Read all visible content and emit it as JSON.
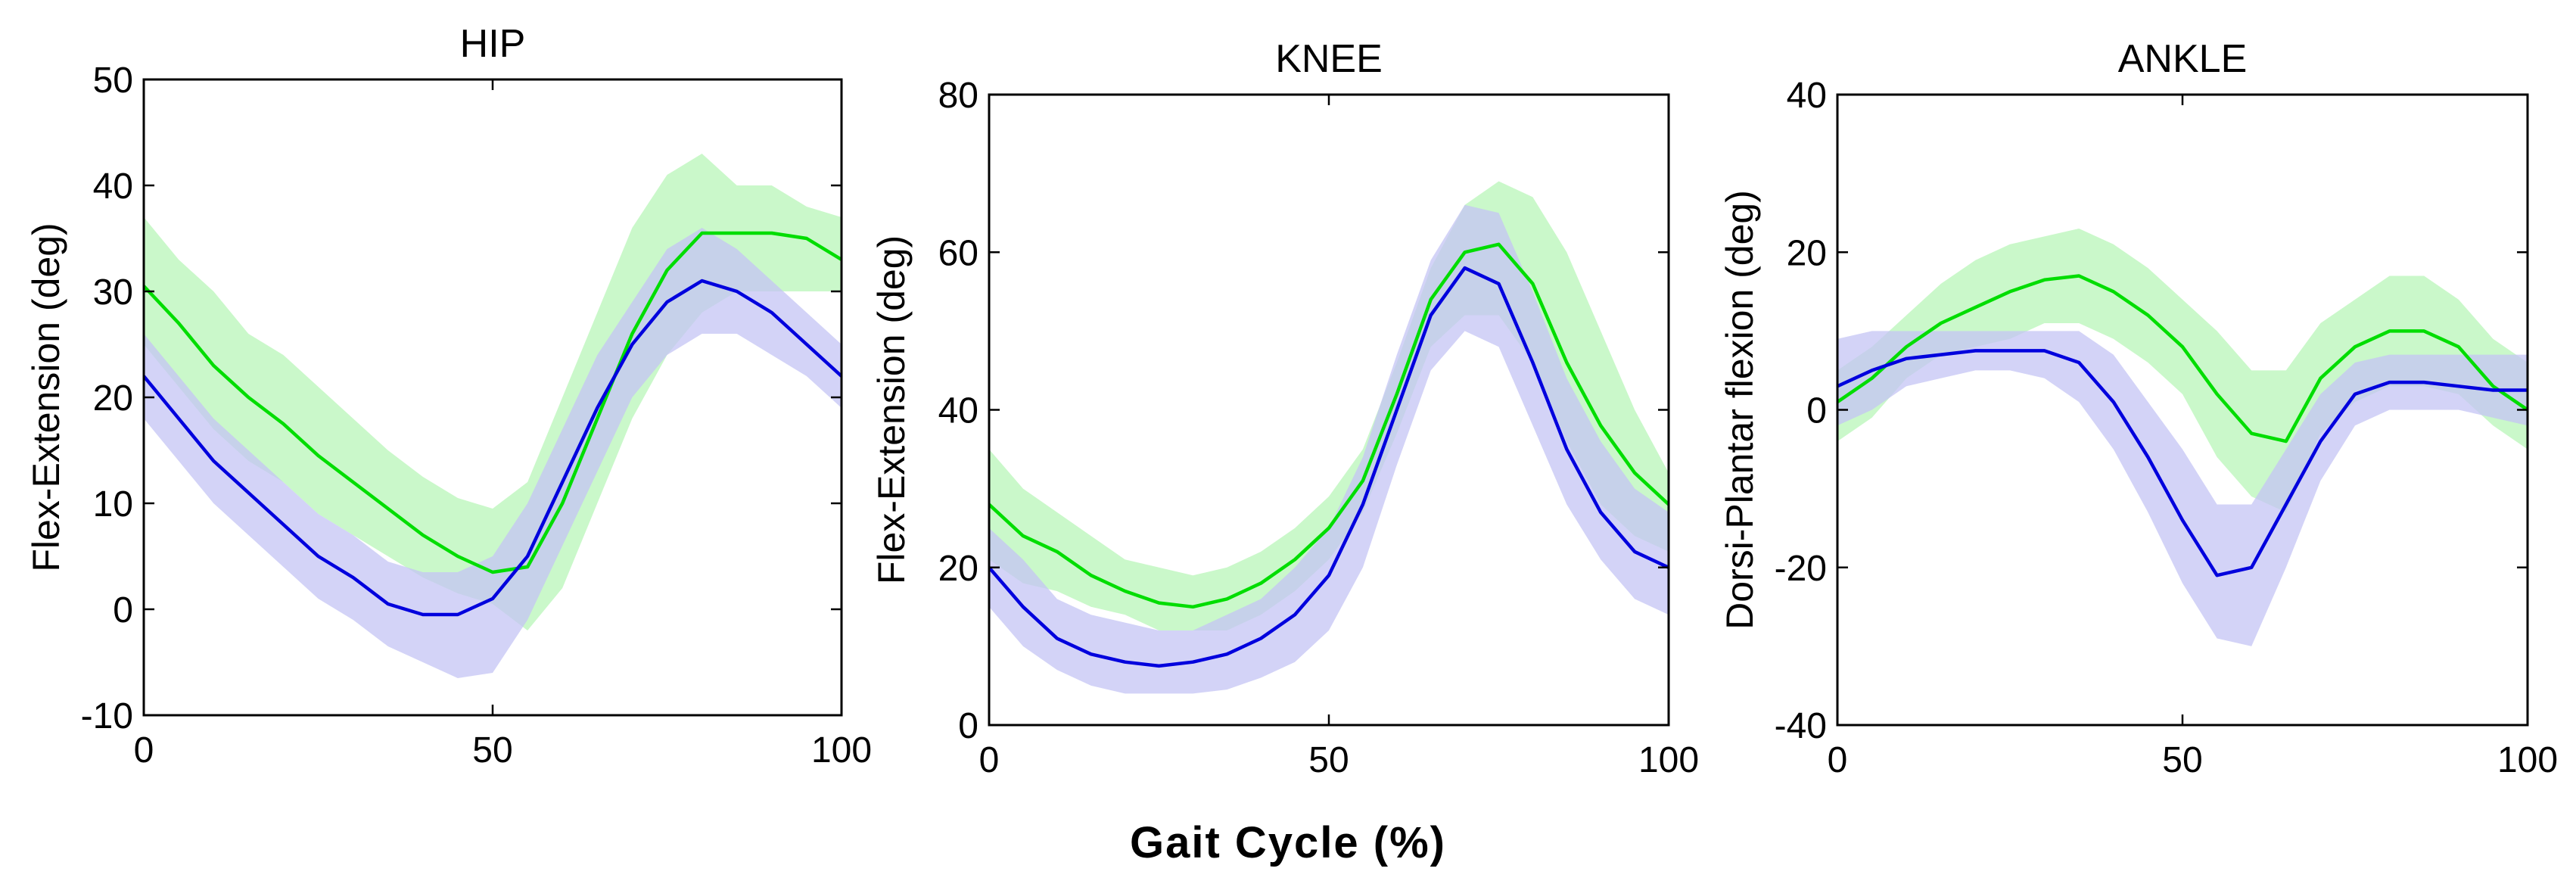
{
  "figure": {
    "xlabel": "Gait Cycle (%)"
  },
  "chart_data": [
    {
      "type": "line",
      "title": "HIP",
      "xlabel": "",
      "ylabel": "Flex-Extension (deg)",
      "xlim": [
        0,
        100
      ],
      "ylim": [
        -10,
        50
      ],
      "xticks": [
        0,
        50,
        100
      ],
      "yticks": [
        -10,
        0,
        10,
        20,
        30,
        40,
        50
      ],
      "x": [
        0,
        5,
        10,
        15,
        20,
        25,
        30,
        35,
        40,
        45,
        50,
        55,
        60,
        65,
        70,
        75,
        80,
        85,
        90,
        95,
        100
      ],
      "series": [
        {
          "color": "#00dd00",
          "band_color": "#b8f5b8",
          "values": [
            30.5,
            27,
            23,
            20,
            17.5,
            14.5,
            12,
            9.5,
            7,
            5,
            3.5,
            4,
            10,
            18,
            26,
            32,
            35.5,
            35.5,
            35.5,
            35,
            33
          ],
          "band_upper": [
            37,
            33,
            30,
            26,
            24,
            21,
            18,
            15,
            12.5,
            10.5,
            9.5,
            12,
            20,
            28,
            36,
            41,
            43,
            40,
            40,
            38,
            37
          ],
          "band_lower": [
            25,
            21,
            17,
            14,
            12,
            9,
            7,
            5,
            3,
            1.5,
            0.5,
            -2,
            2,
            10,
            18,
            24,
            28,
            30,
            30,
            30,
            30
          ]
        },
        {
          "color": "#0000dd",
          "band_color": "#c4c4f4",
          "values": [
            22,
            18,
            14,
            11,
            8,
            5,
            3,
            0.5,
            -0.5,
            -0.5,
            1,
            5,
            12,
            19,
            25,
            29,
            31,
            30,
            28,
            25,
            22
          ],
          "band_upper": [
            26,
            22,
            18,
            15,
            12,
            9,
            7,
            4.5,
            3.5,
            3.5,
            5,
            10,
            17,
            24,
            29,
            34,
            36,
            34,
            31,
            28,
            25
          ],
          "band_lower": [
            18,
            14,
            10,
            7,
            4,
            1,
            -1,
            -3.5,
            -5,
            -6.5,
            -6,
            -1,
            6,
            13,
            20,
            24,
            26,
            26,
            24,
            22,
            19
          ]
        }
      ]
    },
    {
      "type": "line",
      "title": "KNEE",
      "xlabel": "",
      "ylabel": "Flex-Extension (deg)",
      "xlim": [
        0,
        100
      ],
      "ylim": [
        0,
        80
      ],
      "xticks": [
        0,
        50,
        100
      ],
      "yticks": [
        0,
        20,
        40,
        60,
        80
      ],
      "x": [
        0,
        5,
        10,
        15,
        20,
        25,
        30,
        35,
        40,
        45,
        50,
        55,
        60,
        65,
        70,
        75,
        80,
        85,
        90,
        95,
        100
      ],
      "series": [
        {
          "color": "#00dd00",
          "band_color": "#b8f5b8",
          "values": [
            28,
            24,
            22,
            19,
            17,
            15.5,
            15,
            16,
            18,
            21,
            25,
            31,
            42,
            54,
            60,
            61,
            56,
            46,
            38,
            32,
            28
          ],
          "band_upper": [
            35,
            30,
            27,
            24,
            21,
            20,
            19,
            20,
            22,
            25,
            29,
            35,
            46,
            58,
            66,
            69,
            67,
            60,
            50,
            40,
            32
          ],
          "band_lower": [
            21,
            18,
            17,
            15,
            14,
            12,
            12,
            12,
            14,
            17,
            21,
            27,
            37,
            48,
            52,
            52,
            46,
            36,
            28,
            24,
            22
          ]
        },
        {
          "color": "#0000dd",
          "band_color": "#c4c4f4",
          "values": [
            20,
            15,
            11,
            9,
            8,
            7.5,
            8,
            9,
            11,
            14,
            19,
            28,
            40,
            52,
            58,
            56,
            46,
            35,
            27,
            22,
            20
          ],
          "band_upper": [
            25,
            21,
            16,
            14,
            13,
            12,
            12,
            14,
            16,
            20,
            25,
            34,
            47,
            59,
            66,
            65,
            55,
            44,
            36,
            30,
            27
          ],
          "band_lower": [
            15,
            10,
            7,
            5,
            4,
            4,
            4,
            4.5,
            6,
            8,
            12,
            20,
            33,
            45,
            50,
            48,
            38,
            28,
            21,
            16,
            14
          ]
        }
      ]
    },
    {
      "type": "line",
      "title": "ANKLE",
      "xlabel": "",
      "ylabel": "Dorsi-Plantar flexion (deg)",
      "xlim": [
        0,
        100
      ],
      "ylim": [
        -40,
        40
      ],
      "xticks": [
        0,
        50,
        100
      ],
      "yticks": [
        -40,
        -20,
        0,
        20,
        40
      ],
      "x": [
        0,
        5,
        10,
        15,
        20,
        25,
        30,
        35,
        40,
        45,
        50,
        55,
        60,
        65,
        70,
        75,
        80,
        85,
        90,
        95,
        100
      ],
      "series": [
        {
          "color": "#00dd00",
          "band_color": "#b8f5b8",
          "values": [
            1,
            4,
            8,
            11,
            13,
            15,
            16.5,
            17,
            15,
            12,
            8,
            2,
            -3,
            -4,
            4,
            8,
            10,
            10,
            8,
            3,
            0
          ],
          "band_upper": [
            5,
            8,
            12,
            16,
            19,
            21,
            22,
            23,
            21,
            18,
            14,
            10,
            5,
            5,
            11,
            14,
            17,
            17,
            14,
            9,
            6
          ],
          "band_lower": [
            -4,
            -1,
            4,
            7,
            8,
            9,
            11,
            11,
            9,
            6,
            2,
            -6,
            -11,
            -13,
            -3,
            1,
            3,
            3,
            2,
            -2,
            -5
          ]
        },
        {
          "color": "#0000dd",
          "band_color": "#c4c4f4",
          "values": [
            3,
            5,
            6.5,
            7,
            7.5,
            7.5,
            7.5,
            6,
            1,
            -6,
            -14,
            -21,
            -20,
            -12,
            -4,
            2,
            3.5,
            3.5,
            3,
            2.5,
            2.5
          ],
          "band_upper": [
            9,
            10,
            10,
            10,
            10,
            10,
            10,
            10,
            7,
            1,
            -5,
            -12,
            -12,
            -5,
            2,
            6,
            7,
            7,
            7,
            7,
            7
          ],
          "band_lower": [
            -2,
            0,
            3,
            4,
            5,
            5,
            4,
            1,
            -5,
            -13,
            -22,
            -29,
            -30,
            -20,
            -9,
            -2,
            0,
            0,
            0,
            -1,
            -2
          ]
        }
      ]
    }
  ]
}
